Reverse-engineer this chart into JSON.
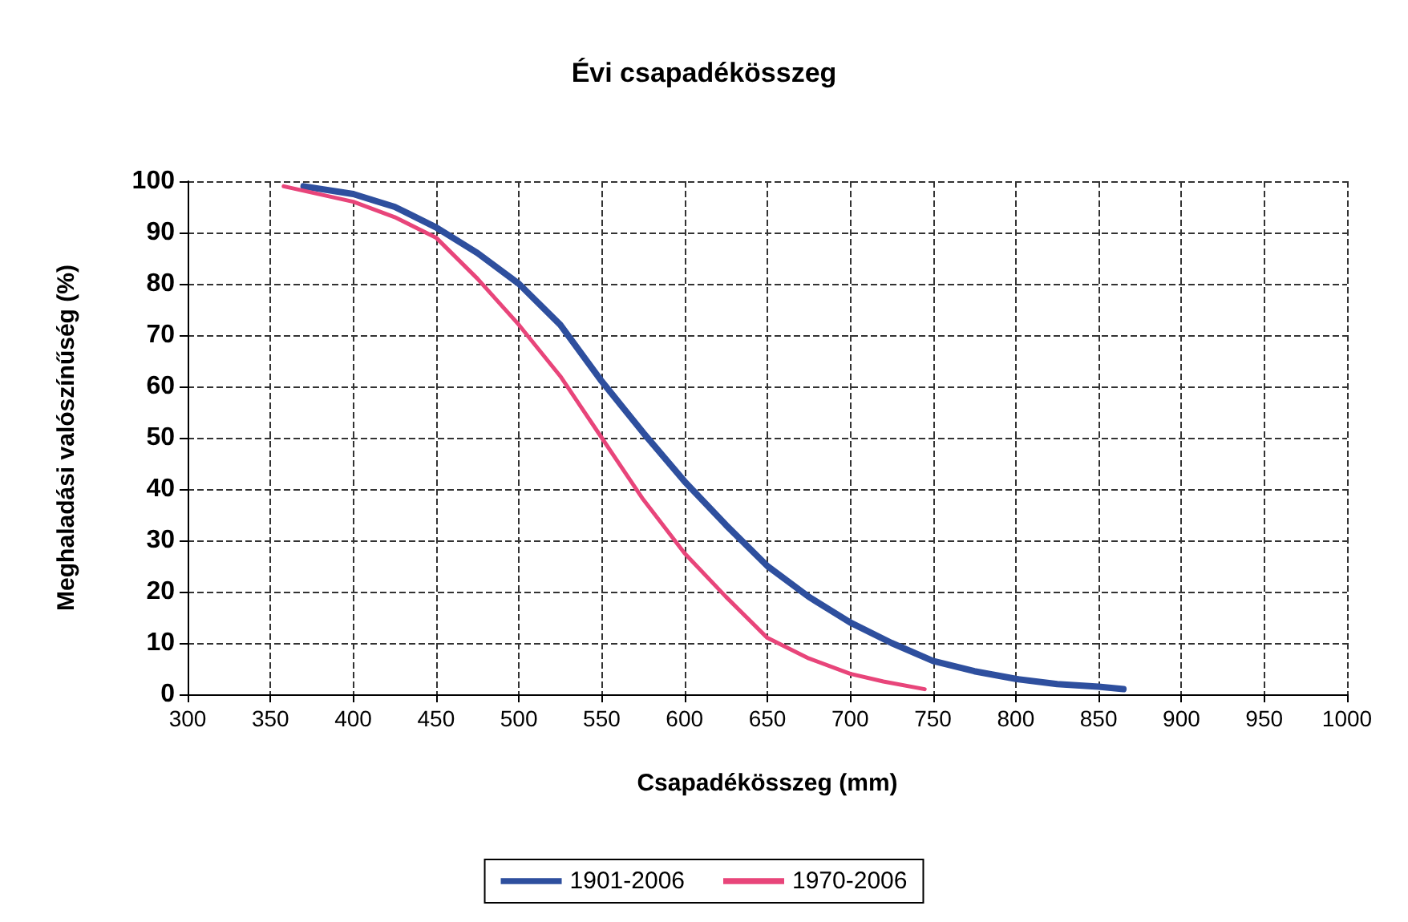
{
  "chart_data": {
    "type": "line",
    "title": "Évi csapadékösszeg",
    "xlabel": "Csapadékösszeg (mm)",
    "ylabel": "Meghaladási valószínűség (%)",
    "xlim": [
      300,
      1000
    ],
    "xticks": [
      300,
      350,
      400,
      450,
      500,
      550,
      600,
      650,
      700,
      750,
      800,
      850,
      900,
      950,
      1000
    ],
    "ylim": [
      0,
      100
    ],
    "yticks": [
      0,
      10,
      20,
      30,
      40,
      50,
      60,
      70,
      80,
      90,
      100
    ],
    "grid": true,
    "legend": "bottom",
    "marker": "none",
    "line_style": "solid",
    "series": [
      {
        "name": "1901-2006",
        "color": "#2e4f9e",
        "x": [
          370,
          400,
          425,
          450,
          475,
          500,
          525,
          550,
          575,
          600,
          625,
          650,
          675,
          700,
          725,
          750,
          775,
          800,
          825,
          850,
          865
        ],
        "values": [
          99,
          97.5,
          95,
          91,
          86,
          80,
          72,
          61,
          51,
          41.5,
          33,
          25,
          19,
          14,
          10,
          6.5,
          4.5,
          3,
          2,
          1.5,
          1
        ]
      },
      {
        "name": "1970-2006",
        "color": "#e8457a",
        "x": [
          358,
          400,
          425,
          450,
          475,
          500,
          525,
          550,
          575,
          600,
          625,
          650,
          675,
          700,
          720,
          745
        ],
        "values": [
          99,
          96,
          93,
          89,
          81,
          72,
          62,
          50,
          38,
          27.5,
          19,
          11,
          7,
          4,
          2.5,
          1
        ]
      }
    ]
  }
}
